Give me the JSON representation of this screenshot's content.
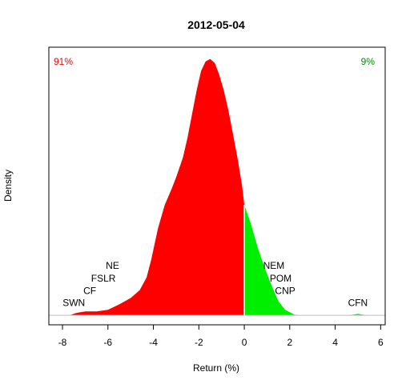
{
  "chart_data": {
    "type": "area",
    "title": "2012-05-04",
    "xlabel": "Return (%)",
    "ylabel": "Density",
    "xlim": [
      -8.6,
      6.2
    ],
    "ylim": [
      -0.012,
      0.34
    ],
    "x_ticks": [
      -8,
      -6,
      -4,
      -2,
      0,
      2,
      4,
      6
    ],
    "grid": false,
    "colors": {
      "negative": "#ff0000",
      "positive": "#00ee00",
      "baseline": "#bebebe",
      "text": "#000000"
    },
    "annotations": {
      "negative_share": {
        "text": "91%",
        "color": "#ff0000",
        "position": "top-left"
      },
      "positive_share": {
        "text": "9%",
        "color": "#008b00",
        "position": "top-right"
      }
    },
    "negative_region": {
      "x": [
        -7.7,
        -7.4,
        -7.0,
        -6.5,
        -6.0,
        -5.5,
        -5.0,
        -4.6,
        -4.3,
        -4.1,
        -3.8,
        -3.5,
        -3.2,
        -3.0,
        -2.7,
        -2.5,
        -2.3,
        -2.1,
        -1.9,
        -1.7,
        -1.5,
        -1.3,
        -1.1,
        -0.9,
        -0.7,
        -0.5,
        -0.3,
        -0.1,
        0.0
      ],
      "y": [
        0.0,
        0.003,
        0.005,
        0.005,
        0.007,
        0.014,
        0.022,
        0.032,
        0.048,
        0.07,
        0.11,
        0.14,
        0.16,
        0.175,
        0.2,
        0.225,
        0.255,
        0.285,
        0.31,
        0.322,
        0.325,
        0.32,
        0.305,
        0.285,
        0.26,
        0.23,
        0.2,
        0.165,
        0.14
      ]
    },
    "positive_region": {
      "x": [
        0.0,
        0.3,
        0.6,
        0.9,
        1.2,
        1.5,
        1.8,
        2.2,
        2.5,
        3.5,
        4.5,
        4.8,
        5.0,
        5.2,
        5.5,
        6.0
      ],
      "y": [
        0.14,
        0.115,
        0.085,
        0.06,
        0.038,
        0.018,
        0.007,
        0.001,
        0.0,
        0.0,
        0.0,
        0.001,
        0.002,
        0.001,
        0.0,
        0.0
      ]
    },
    "labels": [
      {
        "text": "SWN",
        "x": -7.5,
        "y": 0.012
      },
      {
        "text": "CF",
        "x": -6.8,
        "y": 0.027
      },
      {
        "text": "FSLR",
        "x": -6.2,
        "y": 0.043
      },
      {
        "text": "NE",
        "x": -5.8,
        "y": 0.059
      },
      {
        "text": "NEM",
        "x": 1.3,
        "y": 0.059
      },
      {
        "text": "POM",
        "x": 1.6,
        "y": 0.043
      },
      {
        "text": "CNP",
        "x": 1.8,
        "y": 0.027
      },
      {
        "text": "CFN",
        "x": 5.0,
        "y": 0.012
      }
    ]
  }
}
